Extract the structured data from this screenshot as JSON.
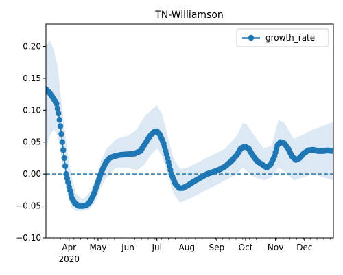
{
  "chart_data": {
    "type": "line",
    "title": "TN-Williamson",
    "xlabel": "",
    "ylabel": "",
    "x_range": [
      "2020-03-08",
      "2020-12-31"
    ],
    "ylim": [
      -0.1,
      0.235
    ],
    "y_ticks": [
      -0.1,
      -0.05,
      0.0,
      0.05,
      0.1,
      0.15,
      0.2
    ],
    "y_tick_labels": [
      "−0.10",
      "−0.05",
      "0.00",
      "0.05",
      "0.10",
      "0.15",
      "0.20"
    ],
    "x_ticks": [
      {
        "date": "2020-04-01",
        "label": "Apr",
        "sublabel": "2020"
      },
      {
        "date": "2020-05-01",
        "label": "May"
      },
      {
        "date": "2020-06-01",
        "label": "Jun"
      },
      {
        "date": "2020-07-01",
        "label": "Jul"
      },
      {
        "date": "2020-08-01",
        "label": "Aug"
      },
      {
        "date": "2020-09-01",
        "label": "Sep"
      },
      {
        "date": "2020-10-01",
        "label": "Oct"
      },
      {
        "date": "2020-11-01",
        "label": "Nov"
      },
      {
        "date": "2020-12-01",
        "label": "Dec"
      }
    ],
    "reference_line": {
      "y": 0.0,
      "style": "dashed"
    },
    "legend": {
      "position": "upper right",
      "entries": [
        "growth_rate"
      ]
    },
    "grid": false,
    "colors": {
      "series": "#1f77b4",
      "band": "#dce9f5"
    },
    "series": [
      {
        "name": "growth_rate",
        "marker": "circle",
        "points": [
          [
            "2020-03-08",
            0.133
          ],
          [
            "2020-03-12",
            0.127
          ],
          [
            "2020-03-16",
            0.118
          ],
          [
            "2020-03-19",
            0.11
          ],
          [
            "2020-03-21",
            0.095
          ],
          [
            "2020-03-23",
            0.075
          ],
          [
            "2020-03-25",
            0.05
          ],
          [
            "2020-03-27",
            0.025
          ],
          [
            "2020-03-29",
            0.0
          ],
          [
            "2020-04-01",
            -0.02
          ],
          [
            "2020-04-04",
            -0.038
          ],
          [
            "2020-04-07",
            -0.046
          ],
          [
            "2020-04-11",
            -0.05
          ],
          [
            "2020-04-15",
            -0.05
          ],
          [
            "2020-04-19",
            -0.049
          ],
          [
            "2020-04-23",
            -0.043
          ],
          [
            "2020-04-27",
            -0.03
          ],
          [
            "2020-05-01",
            -0.012
          ],
          [
            "2020-05-05",
            0.005
          ],
          [
            "2020-05-09",
            0.018
          ],
          [
            "2020-05-13",
            0.025
          ],
          [
            "2020-05-18",
            0.028
          ],
          [
            "2020-05-24",
            0.03
          ],
          [
            "2020-06-01",
            0.031
          ],
          [
            "2020-06-08",
            0.032
          ],
          [
            "2020-06-14",
            0.036
          ],
          [
            "2020-06-19",
            0.048
          ],
          [
            "2020-06-24",
            0.06
          ],
          [
            "2020-06-28",
            0.066
          ],
          [
            "2020-07-01",
            0.067
          ],
          [
            "2020-07-04",
            0.062
          ],
          [
            "2020-07-08",
            0.048
          ],
          [
            "2020-07-12",
            0.025
          ],
          [
            "2020-07-16",
            0.0
          ],
          [
            "2020-07-20",
            -0.015
          ],
          [
            "2020-07-24",
            -0.022
          ],
          [
            "2020-07-28",
            -0.022
          ],
          [
            "2020-08-02",
            -0.018
          ],
          [
            "2020-08-08",
            -0.012
          ],
          [
            "2020-08-15",
            -0.006
          ],
          [
            "2020-08-22",
            0.0
          ],
          [
            "2020-08-28",
            0.003
          ],
          [
            "2020-09-04",
            0.007
          ],
          [
            "2020-09-10",
            0.012
          ],
          [
            "2020-09-16",
            0.02
          ],
          [
            "2020-09-22",
            0.03
          ],
          [
            "2020-09-26",
            0.04
          ],
          [
            "2020-09-30",
            0.043
          ],
          [
            "2020-10-04",
            0.04
          ],
          [
            "2020-10-08",
            0.03
          ],
          [
            "2020-10-13",
            0.02
          ],
          [
            "2020-10-18",
            0.015
          ],
          [
            "2020-10-23",
            0.01
          ],
          [
            "2020-10-27",
            0.015
          ],
          [
            "2020-10-31",
            0.028
          ],
          [
            "2020-11-03",
            0.045
          ],
          [
            "2020-11-06",
            0.05
          ],
          [
            "2020-11-10",
            0.048
          ],
          [
            "2020-11-14",
            0.04
          ],
          [
            "2020-11-18",
            0.028
          ],
          [
            "2020-11-22",
            0.022
          ],
          [
            "2020-11-26",
            0.025
          ],
          [
            "2020-11-30",
            0.032
          ],
          [
            "2020-12-05",
            0.037
          ],
          [
            "2020-12-10",
            0.038
          ],
          [
            "2020-12-15",
            0.036
          ],
          [
            "2020-12-20",
            0.036
          ],
          [
            "2020-12-25",
            0.037
          ],
          [
            "2020-12-31",
            0.036
          ]
        ],
        "band": [
          [
            "2020-03-08",
            0.04,
            0.2
          ],
          [
            "2020-03-12",
            0.06,
            0.21
          ],
          [
            "2020-03-16",
            0.07,
            0.195
          ],
          [
            "2020-03-20",
            0.06,
            0.17
          ],
          [
            "2020-03-25",
            0.02,
            0.1
          ],
          [
            "2020-03-29",
            -0.02,
            0.05
          ],
          [
            "2020-04-03",
            -0.052,
            0.0
          ],
          [
            "2020-04-08",
            -0.058,
            -0.03
          ],
          [
            "2020-04-15",
            -0.058,
            -0.04
          ],
          [
            "2020-04-22",
            -0.055,
            -0.03
          ],
          [
            "2020-04-28",
            -0.045,
            -0.01
          ],
          [
            "2020-05-04",
            -0.02,
            0.02
          ],
          [
            "2020-05-10",
            -0.005,
            0.04
          ],
          [
            "2020-05-20",
            0.01,
            0.055
          ],
          [
            "2020-06-01",
            0.01,
            0.06
          ],
          [
            "2020-06-10",
            0.005,
            0.07
          ],
          [
            "2020-06-18",
            0.015,
            0.09
          ],
          [
            "2020-06-25",
            0.03,
            0.1
          ],
          [
            "2020-07-01",
            0.04,
            0.108
          ],
          [
            "2020-07-06",
            0.03,
            0.095
          ],
          [
            "2020-07-12",
            0.0,
            0.06
          ],
          [
            "2020-07-18",
            -0.03,
            0.025
          ],
          [
            "2020-07-25",
            -0.045,
            0.008
          ],
          [
            "2020-08-02",
            -0.04,
            0.01
          ],
          [
            "2020-08-15",
            -0.03,
            0.02
          ],
          [
            "2020-08-28",
            -0.02,
            0.03
          ],
          [
            "2020-09-10",
            -0.01,
            0.04
          ],
          [
            "2020-09-22",
            0.0,
            0.06
          ],
          [
            "2020-09-28",
            0.01,
            0.08
          ],
          [
            "2020-10-02",
            0.005,
            0.078
          ],
          [
            "2020-10-10",
            -0.005,
            0.06
          ],
          [
            "2020-10-20",
            -0.01,
            0.04
          ],
          [
            "2020-10-28",
            -0.005,
            0.045
          ],
          [
            "2020-11-04",
            0.01,
            0.085
          ],
          [
            "2020-11-10",
            0.005,
            0.08
          ],
          [
            "2020-11-20",
            -0.01,
            0.055
          ],
          [
            "2020-11-30",
            -0.005,
            0.062
          ],
          [
            "2020-12-10",
            0.0,
            0.07
          ],
          [
            "2020-12-20",
            -0.005,
            0.075
          ],
          [
            "2020-12-31",
            -0.01,
            0.082
          ]
        ]
      }
    ]
  }
}
